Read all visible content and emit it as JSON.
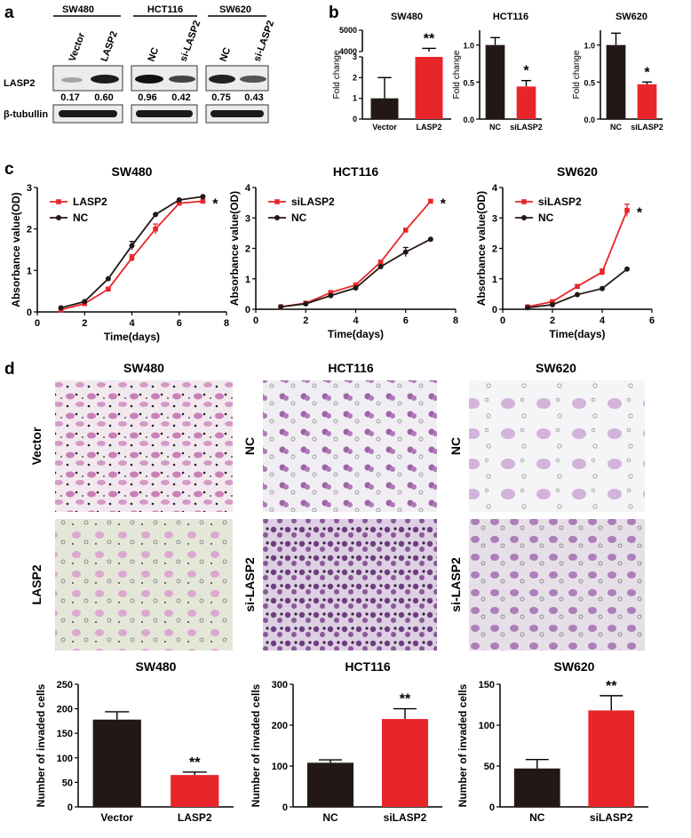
{
  "panels": {
    "a": "a",
    "b": "b",
    "c": "c",
    "d": "d"
  },
  "western_blot": {
    "groups": [
      {
        "name": "SW480",
        "lanes": [
          "Vector",
          "LASP2"
        ],
        "values": [
          "0.17",
          "0.60"
        ]
      },
      {
        "name": "HCT116",
        "lanes": [
          "NC",
          "si-LASP2"
        ],
        "values": [
          "0.96",
          "0.42"
        ]
      },
      {
        "name": "SW620",
        "lanes": [
          "NC",
          "si-LASP2"
        ],
        "values": [
          "0.75",
          "0.43"
        ]
      }
    ],
    "rows": [
      "LASP2",
      "β-tubullin"
    ]
  },
  "images": {
    "titles": [
      "SW480",
      "HCT116",
      "SW620"
    ],
    "rows": [
      [
        "Vector",
        "NC",
        "NC"
      ],
      [
        "LASP2",
        "si-LASP2",
        "si-LASP2"
      ]
    ]
  },
  "colors": {
    "dark": "#231815",
    "red": "#e8262a",
    "black": "#000000"
  },
  "chart_data": [
    {
      "id": "b1",
      "type": "bar",
      "title": "SW480",
      "ylabel": "Fold change",
      "categories": [
        "Vector",
        "LASP2"
      ],
      "values": [
        1,
        4000
      ],
      "errors": [
        1,
        150
      ],
      "y_ticks": [
        "0",
        "1",
        "2",
        "3",
        "4000",
        "5000"
      ],
      "significance": "**",
      "note": "broken y-axis: lower segment 0-3, upper segment 4000-5000"
    },
    {
      "id": "b2",
      "type": "bar",
      "title": "HCT116",
      "ylabel": "Fold change",
      "categories": [
        "NC",
        "siLASP2"
      ],
      "values": [
        1.0,
        0.44
      ],
      "errors": [
        0.1,
        0.08
      ],
      "ylim": [
        0,
        1.2
      ],
      "y_ticks": [
        "0.0",
        "0.5",
        "1.0"
      ],
      "significance": "*"
    },
    {
      "id": "b3",
      "type": "bar",
      "title": "SW620",
      "ylabel": "Fold change",
      "categories": [
        "NC",
        "siLASP2"
      ],
      "values": [
        1.0,
        0.47
      ],
      "errors": [
        0.16,
        0.03
      ],
      "ylim": [
        0,
        1.2
      ],
      "y_ticks": [
        "0.0",
        "0.5",
        "1.0"
      ],
      "significance": "*"
    },
    {
      "id": "c1",
      "type": "line",
      "title": "SW480",
      "xlabel": "Time(days)",
      "ylabel": "Absorbance value(OD)",
      "xlim": [
        0,
        8
      ],
      "ylim": [
        0,
        3
      ],
      "x_ticks": [
        "0",
        "2",
        "4",
        "6",
        "8"
      ],
      "y_ticks": [
        "0",
        "1",
        "2",
        "3"
      ],
      "series": [
        {
          "name": "LASP2",
          "x": [
            1,
            2,
            3,
            4,
            5,
            6,
            7
          ],
          "values": [
            0.05,
            0.2,
            0.55,
            1.3,
            2.0,
            2.62,
            2.67
          ],
          "errors": [
            0,
            0,
            0,
            0.08,
            0.12,
            0,
            0
          ],
          "color": "red"
        },
        {
          "name": "NC",
          "x": [
            1,
            2,
            3,
            4,
            5,
            6,
            7
          ],
          "values": [
            0.1,
            0.25,
            0.8,
            1.6,
            2.35,
            2.7,
            2.78
          ],
          "errors": [
            0,
            0,
            0,
            0.1,
            0,
            0,
            0
          ],
          "color": "dark"
        }
      ],
      "significance": "*"
    },
    {
      "id": "c2",
      "type": "line",
      "title": "HCT116",
      "xlabel": "Time(days)",
      "ylabel": "Absorbance value(OD)",
      "xlim": [
        0,
        8
      ],
      "ylim": [
        0,
        4
      ],
      "x_ticks": [
        "0",
        "2",
        "4",
        "6",
        "8"
      ],
      "y_ticks": [
        "0",
        "1",
        "2",
        "3",
        "4"
      ],
      "series": [
        {
          "name": "siLASP2",
          "x": [
            1,
            2,
            3,
            4,
            5,
            6,
            7
          ],
          "values": [
            0.08,
            0.2,
            0.55,
            0.8,
            1.55,
            2.6,
            3.55
          ],
          "errors": [
            0,
            0,
            0,
            0,
            0,
            0,
            0
          ],
          "color": "red"
        },
        {
          "name": "NC",
          "x": [
            1,
            2,
            3,
            4,
            5,
            6,
            7
          ],
          "values": [
            0.08,
            0.18,
            0.45,
            0.7,
            1.4,
            1.88,
            2.3
          ],
          "errors": [
            0,
            0,
            0,
            0,
            0,
            0.15,
            0
          ],
          "color": "dark"
        }
      ],
      "significance": "*"
    },
    {
      "id": "c3",
      "type": "line",
      "title": "SW620",
      "xlabel": "Time(days)",
      "ylabel": "Absorbance value(OD)",
      "xlim": [
        0,
        6
      ],
      "ylim": [
        0,
        4
      ],
      "x_ticks": [
        "0",
        "2",
        "4",
        "6"
      ],
      "y_ticks": [
        "0",
        "1",
        "2",
        "3",
        "4"
      ],
      "series": [
        {
          "name": "siLASP2",
          "x": [
            1,
            2,
            3,
            4,
            5
          ],
          "values": [
            0.08,
            0.25,
            0.75,
            1.22,
            3.25
          ],
          "errors": [
            0,
            0,
            0,
            0.1,
            0.2
          ],
          "color": "red"
        },
        {
          "name": "NC",
          "x": [
            1,
            2,
            3,
            4,
            5
          ],
          "values": [
            0.05,
            0.15,
            0.48,
            0.68,
            1.32
          ],
          "errors": [
            0,
            0,
            0,
            0,
            0
          ],
          "color": "dark"
        }
      ],
      "significance": "*"
    },
    {
      "id": "d1",
      "type": "bar",
      "title": "SW480",
      "ylabel": "Number of invaded cells",
      "categories": [
        "Vector",
        "LASP2"
      ],
      "values": [
        178,
        65
      ],
      "errors": [
        16,
        6
      ],
      "ylim": [
        0,
        250
      ],
      "y_ticks": [
        "0",
        "50",
        "100",
        "150",
        "200",
        "250"
      ],
      "significance": "**"
    },
    {
      "id": "d2",
      "type": "bar",
      "title": "HCT116",
      "ylabel": "Number of invaded cells",
      "categories": [
        "NC",
        "siLASP2"
      ],
      "values": [
        108,
        215
      ],
      "errors": [
        7,
        25
      ],
      "ylim": [
        0,
        300
      ],
      "y_ticks": [
        "0",
        "100",
        "200",
        "300"
      ],
      "significance": "**"
    },
    {
      "id": "d3",
      "type": "bar",
      "title": "SW620",
      "ylabel": "Number of invaded cells",
      "categories": [
        "NC",
        "siLASP2"
      ],
      "values": [
        47,
        118
      ],
      "errors": [
        11,
        18
      ],
      "ylim": [
        0,
        150
      ],
      "y_ticks": [
        "0",
        "50",
        "100",
        "150"
      ],
      "significance": "**"
    }
  ]
}
